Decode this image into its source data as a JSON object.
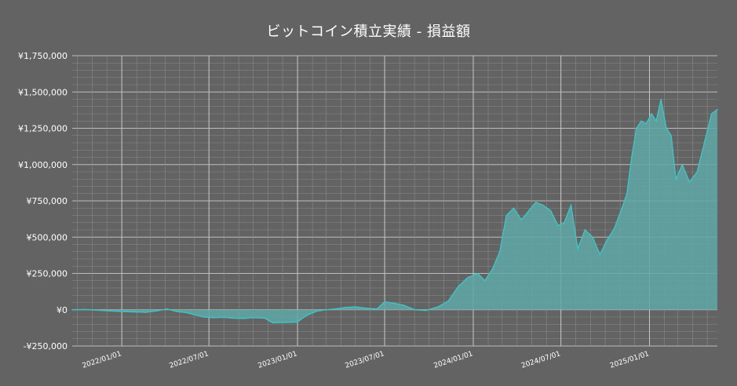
{
  "chart_data": {
    "type": "area",
    "title": "ビットコイン積立実績 - 損益額",
    "ylim": [
      -250000,
      1750000
    ],
    "y_ticks": [
      {
        "value": -250000,
        "label": "-¥250,000"
      },
      {
        "value": 0,
        "label": "¥0"
      },
      {
        "value": 250000,
        "label": "¥250,000"
      },
      {
        "value": 500000,
        "label": "¥500,000"
      },
      {
        "value": 750000,
        "label": "¥750,000"
      },
      {
        "value": 1000000,
        "label": "¥1,000,000"
      },
      {
        "value": 1250000,
        "label": "¥1,250,000"
      },
      {
        "value": 1500000,
        "label": "¥1,500,000"
      },
      {
        "value": 1750000,
        "label": "¥1,750,000"
      }
    ],
    "xlim": [
      "2021-09-20",
      "2025-05-22"
    ],
    "x_ticks": [
      {
        "date": "2022-01-01",
        "label": "2022/01/01"
      },
      {
        "date": "2022-07-01",
        "label": "2022/07/01"
      },
      {
        "date": "2023-01-01",
        "label": "2023/01/01"
      },
      {
        "date": "2023-07-01",
        "label": "2023/07/01"
      },
      {
        "date": "2024-01-01",
        "label": "2024/01/01"
      },
      {
        "date": "2024-07-01",
        "label": "2024/07/01"
      },
      {
        "date": "2025-01-01",
        "label": "2025/01/01"
      }
    ],
    "grid": true,
    "line_color": "#3fc4c6",
    "fill_color": "#5fa7a7",
    "series": [
      {
        "x": [
          "2021-09-20",
          "2021-10-15",
          "2021-11-10",
          "2021-12-05",
          "2022-01-01",
          "2022-01-25",
          "2022-02-20",
          "2022-03-15",
          "2022-04-05",
          "2022-04-25",
          "2022-05-15",
          "2022-06-01",
          "2022-06-20",
          "2022-07-10",
          "2022-08-01",
          "2022-08-20",
          "2022-09-10",
          "2022-10-01",
          "2022-10-25",
          "2022-11-10",
          "2022-12-05",
          "2022-12-31",
          "2023-01-20",
          "2023-02-10",
          "2023-03-01",
          "2023-03-20",
          "2023-04-10",
          "2023-05-01",
          "2023-05-25",
          "2023-06-15",
          "2023-07-01",
          "2023-07-20",
          "2023-08-10",
          "2023-09-01",
          "2023-09-25",
          "2023-10-20",
          "2023-11-10",
          "2023-12-01",
          "2023-12-20",
          "2024-01-10",
          "2024-01-25",
          "2024-02-10",
          "2024-02-25",
          "2024-03-10",
          "2024-03-25",
          "2024-04-10",
          "2024-04-25",
          "2024-05-10",
          "2024-05-25",
          "2024-06-10",
          "2024-06-25",
          "2024-07-08",
          "2024-07-22",
          "2024-08-05",
          "2024-08-20",
          "2024-09-05",
          "2024-09-20",
          "2024-10-05",
          "2024-10-20",
          "2024-11-05",
          "2024-11-15",
          "2024-11-25",
          "2024-12-05",
          "2024-12-15",
          "2024-12-25",
          "2025-01-05",
          "2025-01-15",
          "2025-01-25",
          "2025-02-05",
          "2025-02-15",
          "2025-02-25",
          "2025-03-10",
          "2025-03-25",
          "2025-04-10",
          "2025-04-25",
          "2025-05-10",
          "2025-05-22"
        ],
        "y": [
          0,
          2000,
          -3000,
          -8000,
          -12000,
          -15000,
          -18000,
          -8000,
          5000,
          -12000,
          -20000,
          -35000,
          -50000,
          -55000,
          -52000,
          -58000,
          -60000,
          -55000,
          -58000,
          -90000,
          -88000,
          -85000,
          -40000,
          -10000,
          0,
          5000,
          15000,
          20000,
          10000,
          5000,
          55000,
          45000,
          30000,
          0,
          -5000,
          20000,
          60000,
          160000,
          220000,
          250000,
          200000,
          280000,
          400000,
          650000,
          700000,
          620000,
          680000,
          740000,
          720000,
          680000,
          580000,
          600000,
          720000,
          420000,
          550000,
          500000,
          380000,
          480000,
          560000,
          700000,
          800000,
          1050000,
          1250000,
          1300000,
          1280000,
          1350000,
          1300000,
          1450000,
          1250000,
          1200000,
          900000,
          1000000,
          880000,
          950000,
          1150000,
          1350000,
          1380000
        ]
      }
    ]
  }
}
